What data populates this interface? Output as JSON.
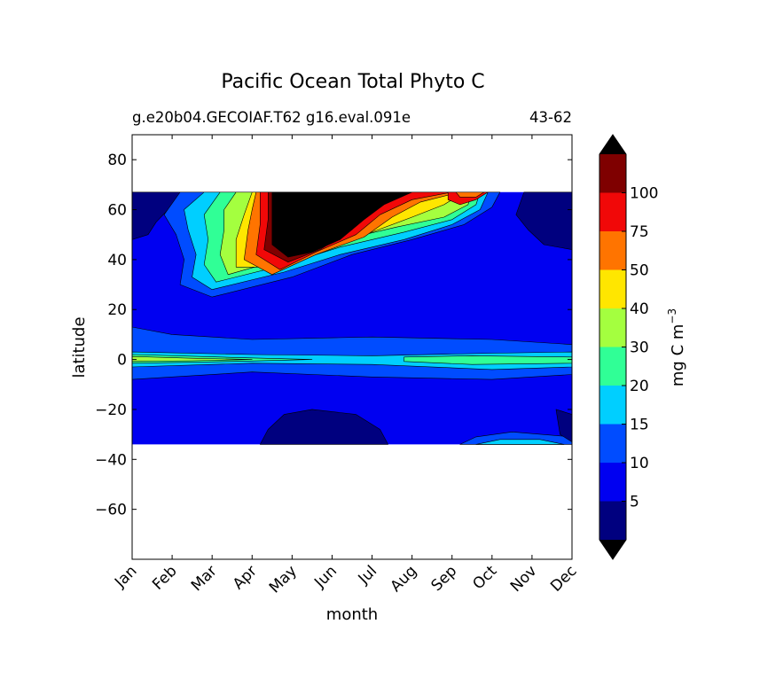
{
  "chart_data": {
    "type": "heatmap",
    "subtype": "filled-contour",
    "title": "Pacific Ocean Total Phyto C",
    "subtitle_left": "g.e20b04.GECOIAF.T62 g16.eval.091e",
    "subtitle_right": "43-62",
    "xlabel": "month",
    "ylabel": "latitude",
    "x_ticks": [
      "Jan",
      "Feb",
      "Mar",
      "Apr",
      "May",
      "Jun",
      "Jul",
      "Aug",
      "Sep",
      "Oct",
      "Nov",
      "Dec"
    ],
    "y_ticks": [
      80,
      60,
      40,
      20,
      0,
      -20,
      -40,
      -60
    ],
    "ylim": [
      -80,
      90
    ],
    "data_lat_range": [
      -34,
      67
    ],
    "colorbar": {
      "label_main": "mg C m",
      "label_exp": "−3",
      "levels": [
        5,
        10,
        15,
        20,
        30,
        40,
        50,
        75,
        100
      ],
      "tick_labels": [
        "5",
        "10",
        "15",
        "20",
        "30",
        "40",
        "50",
        "75",
        "100"
      ],
      "colors": [
        "#00007f",
        "#0000f1",
        "#004cff",
        "#00cfff",
        "#30ff96",
        "#a4ff3f",
        "#ffe600",
        "#ff7400",
        "#f10808",
        "#7f0000"
      ],
      "extend": "both",
      "under_color": "#000000",
      "over_color": "#000000"
    },
    "regions": [
      {
        "name": "base",
        "lat": [
          -34,
          67
        ],
        "level": 1
      },
      {
        "name": "north-winter-east",
        "lat": [
          45,
          67
        ],
        "months": "Jan-Feb, Nov-Dec",
        "level": 0
      },
      {
        "name": "north-spring-bloom-ring",
        "lat": [
          30,
          66
        ],
        "months": "Feb-Oct",
        "level": 5
      },
      {
        "name": "north-bloom-core",
        "lat": [
          38,
          66
        ],
        "months": "Apr-Jul",
        "level": "over"
      },
      {
        "name": "equator-band",
        "lat": [
          -3,
          3
        ],
        "months": "all",
        "level": 3
      },
      {
        "name": "south-subtropical-gyre",
        "lat": [
          -33,
          -18
        ],
        "months": "Apr-Aug",
        "level": 0
      },
      {
        "name": "south-edge-oct",
        "lat": [
          -34,
          -30
        ],
        "months": "Sep-Dec",
        "level": 3
      }
    ]
  }
}
